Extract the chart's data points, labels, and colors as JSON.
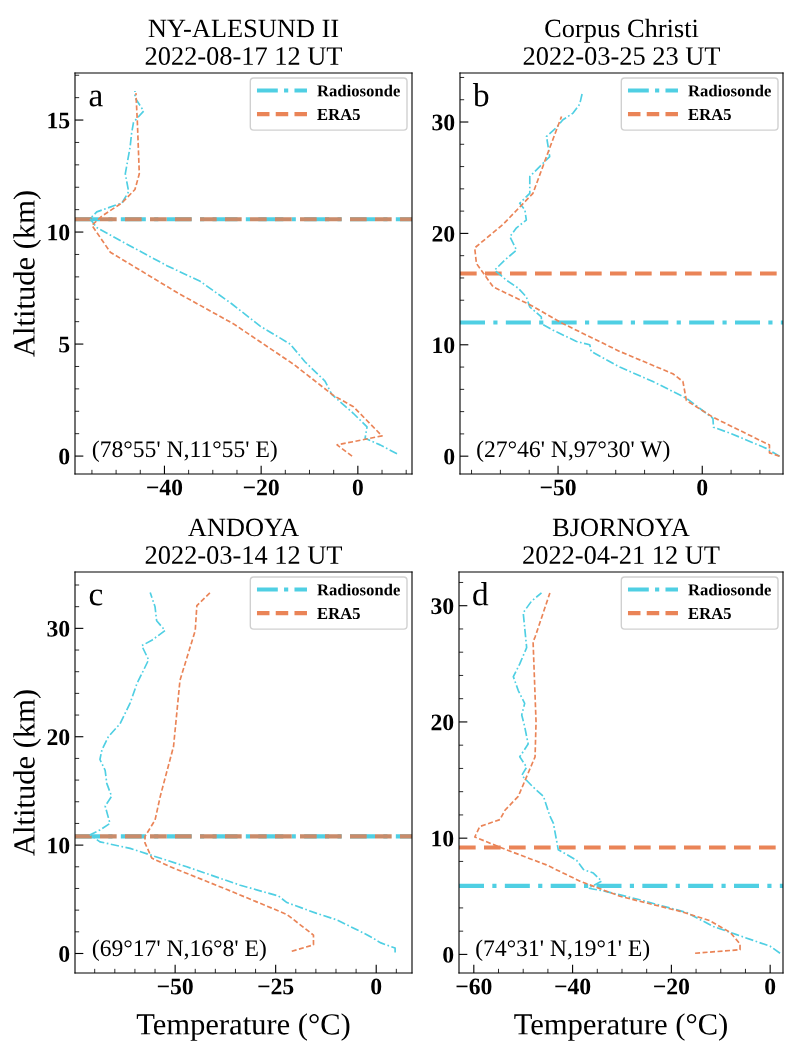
{
  "chart_data": [
    {
      "type": "line",
      "title": "NY-ALESUND II\n2022-08-17 12 UT",
      "ylabel": "Altitude (km)",
      "xlim": [
        -58.5,
        11.2
      ],
      "xticks": [
        -40,
        -20,
        0
      ],
      "ylim": [
        -0.8,
        17.1
      ],
      "yticks": [
        0,
        5,
        10,
        15
      ],
      "tick_labels": "xy",
      "legend": "top right",
      "grid": false,
      "annotations": [
        "a",
        "(78°55' N,11°55' E)"
      ],
      "series": [
        {
          "name": "Radiosonde",
          "color": "#4fcfe3",
          "line_style": "dashdot",
          "x": [
            8.1,
            4.6,
            1.5,
            1.9,
            -0.9,
            -5.4,
            -6.8,
            -10.9,
            -14.0,
            -20.2,
            -26.1,
            -32.6,
            -39.5,
            -46.4,
            -54,
            -55.4,
            -54,
            -48.8,
            -47.4,
            -48.1,
            -47.1,
            -46.8,
            -46.4,
            -44.3,
            -46.1,
            -46.1
          ],
          "values": [
            0.1,
            0.5,
            0.8,
            1.3,
            1.9,
            2.75,
            3.35,
            4.2,
            5.0,
            5.8,
            6.8,
            7.8,
            8.5,
            9.3,
            10.2,
            10.6,
            10.9,
            11.3,
            11.8,
            12.6,
            13.8,
            14.4,
            14.9,
            15.4,
            16.0,
            16.3
          ]
        },
        {
          "name": "ERA5",
          "color": "#ea8457",
          "line_style": "dashed",
          "x": [
            -1.2,
            -4.3,
            5.0,
            -0.9,
            -5.0,
            -13.3,
            -25.7,
            -37.4,
            -51.2,
            -55,
            -53,
            -48.8,
            -46.1,
            -45.2,
            -45.6,
            -45.9
          ],
          "values": [
            0.0,
            0.5,
            0.9,
            2.2,
            2.7,
            4.1,
            5.9,
            7.3,
            9.1,
            10.3,
            10.7,
            11.3,
            11.9,
            12.6,
            14.9,
            16.2
          ]
        }
      ],
      "ref_lines": [
        {
          "axis": "y",
          "value": 10.57,
          "color": "#4fcfe3",
          "line_style": "dashdot"
        },
        {
          "axis": "y",
          "value": 10.57,
          "color": "#c98b6a",
          "line_style": "dashed"
        }
      ]
    },
    {
      "type": "line",
      "title": "Corpus Christi\n2022-03-25 23 UT",
      "xlim": [
        -84,
        28
      ],
      "xticks": [
        -50,
        0
      ],
      "ylim": [
        -1.6,
        34.4
      ],
      "yticks": [
        0,
        10,
        20,
        30
      ],
      "tick_labels": "xy",
      "legend": "top right",
      "grid": false,
      "annotations": [
        "b",
        "(27°46' N,97°30' W)"
      ],
      "series": [
        {
          "name": "Radiosonde",
          "color": "#4fcfe3",
          "line_style": "dashdot",
          "x": [
            26.8,
            22.2,
            10.3,
            3.9,
            3.7,
            -5.5,
            -17.1,
            -28.6,
            -38.5,
            -39.0,
            -43.6,
            -51.7,
            -55.8,
            -55.8,
            -59.8,
            -61,
            -63.9,
            -67.9,
            -72,
            -68.5,
            -64.4,
            -66.7,
            -64.4,
            -61,
            -61.5,
            -63.3,
            -59.8,
            -59.8,
            -55.2,
            -52.9,
            -54,
            -50.6,
            -48.3,
            -44.8,
            -42.5,
            -41.6
          ],
          "values": [
            0,
            0.7,
            2.0,
            2.6,
            3.4,
            5.2,
            6.7,
            8.0,
            9.4,
            10.0,
            10.3,
            11.3,
            11.9,
            12.5,
            13.4,
            14.3,
            15.1,
            15.8,
            16.7,
            17.6,
            18.5,
            19.7,
            20.5,
            21.2,
            22.1,
            22.7,
            23.6,
            25.1,
            26.3,
            26.9,
            28.7,
            29.5,
            30.2,
            30.8,
            31.6,
            32.6
          ]
        },
        {
          "name": "ERA5",
          "color": "#ea8457",
          "line_style": "dashed",
          "x": [
            26.8,
            23.3,
            23.3,
            3.7,
            -5.5,
            -6.7,
            -10.2,
            -28.6,
            -48.3,
            -59.8,
            -72.5,
            -78.3,
            -78.9,
            -69.1,
            -58.7,
            -54,
            -48.8
          ],
          "values": [
            0,
            0.3,
            1.0,
            3.5,
            5.0,
            6.7,
            7.4,
            9.4,
            11.9,
            13.6,
            15.2,
            17.3,
            18.7,
            20.8,
            23.6,
            26.9,
            30.5
          ]
        }
      ],
      "ref_lines": [
        {
          "axis": "y",
          "value": 12.0,
          "color": "#4fcfe3",
          "line_style": "dashdot"
        },
        {
          "axis": "y",
          "value": 16.4,
          "color": "#ea8457",
          "line_style": "dashed"
        }
      ]
    },
    {
      "type": "line",
      "title": "ANDOYA\n2022-03-14 12 UT",
      "xlabel": "Temperature (°C)",
      "ylabel": "Altitude (km)",
      "xlim": [
        -74.9,
        8.9
      ],
      "xticks": [
        -50,
        -25,
        0
      ],
      "ylim": [
        -1.8,
        35.2
      ],
      "yticks": [
        0,
        10,
        20,
        30
      ],
      "tick_labels": "xy",
      "legend": "top right",
      "grid": false,
      "annotations": [
        "c",
        "(69°17' N,16°8' E)"
      ],
      "series": [
        {
          "name": "Radiosonde",
          "color": "#4fcfe3",
          "line_style": "dashdot",
          "x": [
            4.7,
            4.7,
            1.0,
            -0.7,
            -3.2,
            -9.8,
            -14.8,
            -22.2,
            -24.3,
            -33.8,
            -47.1,
            -61.2,
            -68.7,
            -71.1,
            -68.7,
            -66.2,
            -67.4,
            -65.8,
            -67,
            -67.4,
            -68.7,
            -68.2,
            -66.6,
            -63.7,
            -61.2,
            -59.5,
            -58.3,
            -56.6,
            -58.3,
            -55.8,
            -52.5,
            -54.6,
            -55,
            -56.2
          ],
          "values": [
            0.1,
            0.5,
            1.0,
            1.4,
            1.9,
            3.1,
            3.7,
            4.7,
            5.3,
            6.3,
            8.0,
            9.7,
            10.3,
            10.95,
            11.4,
            12.0,
            13.6,
            14.5,
            15.7,
            16.9,
            17.9,
            18.8,
            20.0,
            21.2,
            23.1,
            24.9,
            25.8,
            27.1,
            28.4,
            28.9,
            29.8,
            30.7,
            32.0,
            33.3
          ]
        },
        {
          "name": "ERA5",
          "color": "#ea8457",
          "line_style": "dashed",
          "x": [
            -21,
            -15.6,
            -15.6,
            -22.2,
            -37.1,
            -51.2,
            -55.8,
            -57.5,
            -57.5,
            -55,
            -53.7,
            -50.4,
            -48.8,
            -45,
            -44.6,
            -41.3
          ],
          "values": [
            0.2,
            0.8,
            1.7,
            3.6,
            5.9,
            8.0,
            8.8,
            10.2,
            10.8,
            12.3,
            14.5,
            19.1,
            25.2,
            29.8,
            32.1,
            33.3
          ]
        }
      ],
      "ref_lines": [
        {
          "axis": "y",
          "value": 10.8,
          "color": "#4fcfe3",
          "line_style": "dashdot"
        },
        {
          "axis": "y",
          "value": 10.8,
          "color": "#c98b6a",
          "line_style": "dashed"
        }
      ]
    },
    {
      "type": "line",
      "title": "BJORNOYA\n2022-04-21 12 UT",
      "xlabel": "Temperature (°C)",
      "xlim": [
        -63,
        2.6
      ],
      "xticks": [
        -60,
        -40,
        -20,
        0
      ],
      "ylim": [
        -1.6,
        32.9
      ],
      "yticks": [
        0,
        10,
        20,
        30
      ],
      "tick_labels": "xy",
      "legend": "top right",
      "grid": false,
      "annotations": [
        "d",
        "(74°31' N,19°1' E)"
      ],
      "series": [
        {
          "name": "Radiosonde",
          "color": "#4fcfe3",
          "line_style": "dashdot",
          "x": [
            2.0,
            0,
            -6.8,
            -11.5,
            -16.9,
            -26.4,
            -33.1,
            -36.8,
            -34.1,
            -35.8,
            -37.8,
            -39.2,
            -41.2,
            -42.9,
            -43.2,
            -43.9,
            -44.6,
            -45.9,
            -48,
            -50.3,
            -49.3,
            -50.7,
            -49,
            -49.7,
            -50.3,
            -49.7,
            -51,
            -52,
            -50.7,
            -49.3,
            -49.7,
            -50,
            -48.3,
            -46.3
          ],
          "values": [
            0.1,
            0.7,
            1.7,
            2.4,
            3.6,
            4.7,
            5.4,
            5.7,
            6.3,
            7.0,
            7.3,
            8.1,
            8.6,
            9.0,
            9.7,
            11.3,
            11.9,
            13.6,
            14.4,
            15.4,
            16.1,
            17.0,
            18.1,
            19.6,
            20.6,
            21.6,
            22.7,
            23.9,
            25,
            26.4,
            28.1,
            29.4,
            30.4,
            31.1
          ]
        },
        {
          "name": "ERA5",
          "color": "#ea8457",
          "line_style": "dashed",
          "x": [
            -15.2,
            -6.1,
            -6.1,
            -8.1,
            -12.2,
            -18.2,
            -30.4,
            -38.5,
            -45.3,
            -53.4,
            -59.8,
            -58.8,
            -54.7,
            -53.7,
            -51,
            -48.6,
            -47.6,
            -47.4,
            -48,
            -47.6,
            -44.6
          ],
          "values": [
            0.1,
            0.4,
            0.9,
            1.9,
            2.9,
            3.7,
            5.0,
            6.3,
            7.7,
            9.0,
            10.1,
            11.0,
            11.6,
            12.4,
            13.6,
            16.0,
            17.0,
            20.0,
            26.9,
            27.3,
            31.1
          ]
        }
      ],
      "ref_lines": [
        {
          "axis": "y",
          "value": 5.9,
          "color": "#4fcfe3",
          "line_style": "dashdot"
        },
        {
          "axis": "y",
          "value": 9.2,
          "color": "#ea8457",
          "line_style": "dashed"
        }
      ]
    }
  ]
}
